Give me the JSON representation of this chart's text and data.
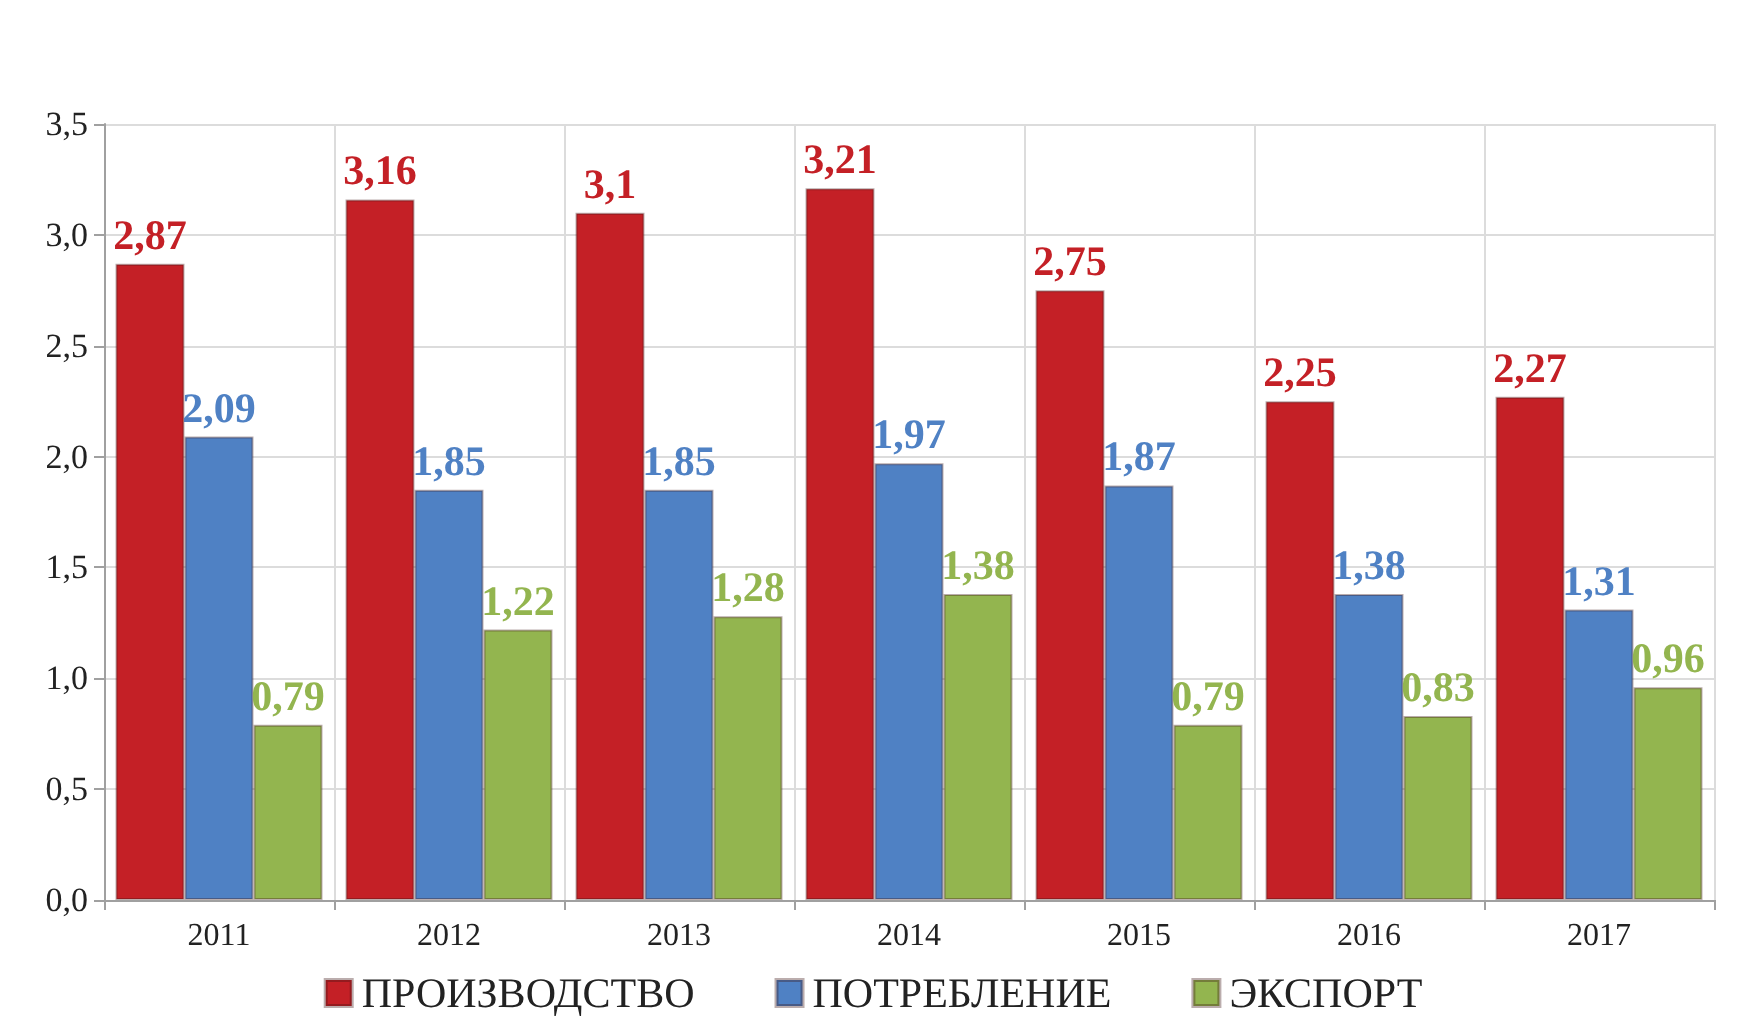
{
  "chart_data": {
    "type": "bar",
    "categories": [
      "2011",
      "2012",
      "2013",
      "2014",
      "2015",
      "2016",
      "2017"
    ],
    "series": [
      {
        "name": "ПРОИЗВОДСТВО",
        "color": "#c42026",
        "values": [
          2.87,
          3.16,
          3.1,
          3.21,
          2.75,
          2.25,
          2.27
        ],
        "value_labels": [
          "2,87",
          "3,16",
          "3,1",
          "3,21",
          "2,75",
          "2,25",
          "2,27"
        ]
      },
      {
        "name": "ПОТРЕБЛЕНИЕ",
        "color": "#4f81c4",
        "values": [
          2.09,
          1.85,
          1.85,
          1.97,
          1.87,
          1.38,
          1.31
        ],
        "value_labels": [
          "2,09",
          "1,85",
          "1,85",
          "1,97",
          "1,87",
          "1,38",
          "1,31"
        ]
      },
      {
        "name": "ЭКСПОРТ",
        "color": "#93b54f",
        "values": [
          0.79,
          1.22,
          1.28,
          1.38,
          0.79,
          0.83,
          0.96
        ],
        "value_labels": [
          "0,79",
          "1,22",
          "1,28",
          "1,38",
          "0,79",
          "0,83",
          "0,96"
        ]
      }
    ],
    "ylim": [
      0,
      3.5
    ],
    "yticks": [
      {
        "value": 0,
        "label": "0,0"
      },
      {
        "value": 0.5,
        "label": "0,5"
      },
      {
        "value": 1,
        "label": "1,0"
      },
      {
        "value": 1.5,
        "label": "1,5"
      },
      {
        "value": 2,
        "label": "2,0"
      },
      {
        "value": 2.5,
        "label": "2,5"
      },
      {
        "value": 3,
        "label": "3,0"
      },
      {
        "value": 3.5,
        "label": "3,5"
      }
    ],
    "grid": true,
    "legend": "bottom"
  }
}
